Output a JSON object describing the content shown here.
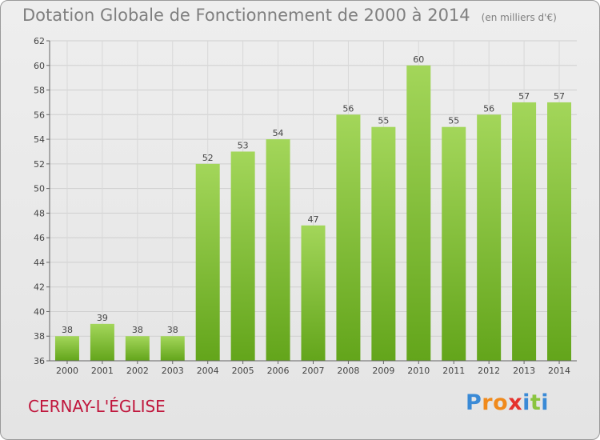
{
  "header": {
    "title": "Dotation Globale de Fonctionnement de 2000 à 2014",
    "unit": "(en milliers d'€)"
  },
  "footer": {
    "place": "CERNAY-L'ÉGLISE",
    "brand": "Proxiti",
    "brand_letters": [
      {
        "ch": "P",
        "color": "#3a8ad6"
      },
      {
        "ch": "r",
        "color": "#f08a1c"
      },
      {
        "ch": "o",
        "color": "#f08a1c"
      },
      {
        "ch": "x",
        "color": "#e5322d"
      },
      {
        "ch": "i",
        "color": "#3a8ad6"
      },
      {
        "ch": "t",
        "color": "#8ac43f"
      },
      {
        "ch": "i",
        "color": "#3a8ad6"
      }
    ]
  },
  "chart_data": {
    "type": "bar",
    "title": "Dotation Globale de Fonctionnement de 2000 à 2014",
    "subtitle": "(en milliers d'€)",
    "categories": [
      "2000",
      "2001",
      "2002",
      "2003",
      "2004",
      "2005",
      "2006",
      "2007",
      "2008",
      "2009",
      "2010",
      "2011",
      "2012",
      "2013",
      "2014"
    ],
    "values": [
      38,
      39,
      38,
      38,
      52,
      53,
      54,
      47,
      56,
      55,
      60,
      55,
      56,
      57,
      57
    ],
    "ylim": [
      36,
      62
    ],
    "yticks": [
      36,
      38,
      40,
      42,
      44,
      46,
      48,
      50,
      52,
      54,
      56,
      58,
      60,
      62
    ],
    "grid": true,
    "bar_color_top": "#a3d65a",
    "bar_color_bottom": "#63a51b"
  }
}
